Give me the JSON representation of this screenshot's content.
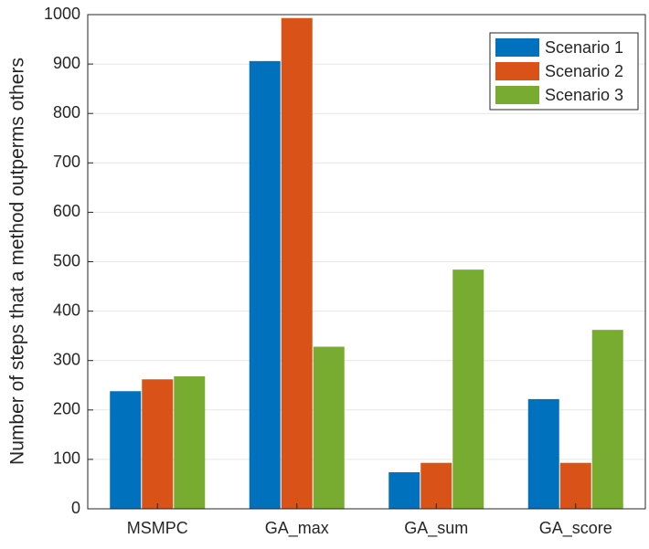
{
  "chart_data": {
    "type": "bar",
    "ylabel": "Number of steps that a method outperms others",
    "categories": [
      "MSMPC",
      "GA_max",
      "GA_sum",
      "GA_score"
    ],
    "series": [
      {
        "name": "Scenario 1",
        "color": "#0072bd",
        "values": [
          238,
          906,
          74,
          222
        ]
      },
      {
        "name": "Scenario 2",
        "color": "#d95319",
        "values": [
          262,
          993,
          93,
          93
        ]
      },
      {
        "name": "Scenario 3",
        "color": "#77ac30",
        "values": [
          268,
          328,
          484,
          362
        ]
      }
    ],
    "ylim": [
      0,
      1000
    ],
    "yticks": [
      0,
      100,
      200,
      300,
      400,
      500,
      600,
      700,
      800,
      900,
      1000
    ],
    "grid": true,
    "legend": "northeast"
  }
}
